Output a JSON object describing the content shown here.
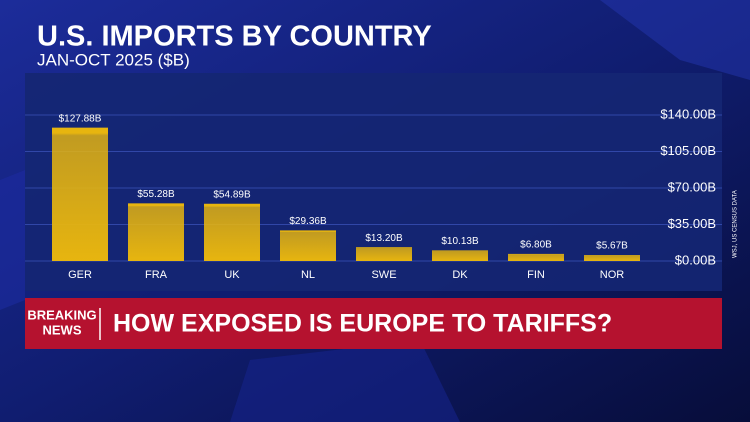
{
  "chart_data": {
    "type": "bar",
    "title": "U.S. IMPORTS BY COUNTRY",
    "subtitle": "JAN-OCT 2025 ($B)",
    "source": "WSJ, US CENSUS DATA",
    "categories": [
      "GER",
      "FRA",
      "UK",
      "NL",
      "SWE",
      "DK",
      "FIN",
      "NOR"
    ],
    "values": [
      127.88,
      55.28,
      54.89,
      29.36,
      13.2,
      10.13,
      6.8,
      5.67
    ],
    "value_labels": [
      "$127.88B",
      "$55.28B",
      "$54.89B",
      "$29.36B",
      "$13.20B",
      "$10.13B",
      "$6.80B",
      "$5.67B"
    ],
    "color": "#e7b50f",
    "ylim": [
      0,
      140
    ],
    "yticks": [
      {
        "value": 0,
        "label": "$0.00B"
      },
      {
        "value": 35,
        "label": "$35.00B"
      },
      {
        "value": 70,
        "label": "$70.00B"
      },
      {
        "value": 105,
        "label": "$105.00B"
      },
      {
        "value": 140,
        "label": "$140.00B"
      }
    ],
    "grid": true
  },
  "banner": {
    "label_lines": [
      "BREAKING",
      "NEWS"
    ],
    "headline": "HOW EXPOSED IS EUROPE TO TARIFFS?"
  }
}
